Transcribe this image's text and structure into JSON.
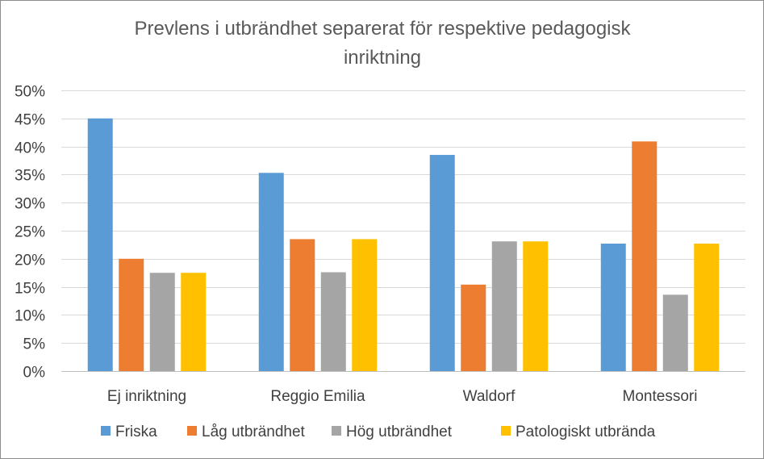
{
  "chart_data": {
    "type": "bar",
    "title_line1": "Prevlens i utbrändhet separerat för respektive pedagogisk",
    "title_line2": "inriktning",
    "categories": [
      "Ej inriktning",
      "Reggio Emilia",
      "Waldorf",
      "Montessori"
    ],
    "series": [
      {
        "name": "Friska",
        "color": "#5b9bd5",
        "values": [
          45,
          35.3,
          38.5,
          22.7
        ]
      },
      {
        "name": "Låg utbrändhet",
        "color": "#ed7d31",
        "values": [
          20,
          23.5,
          15.4,
          40.9
        ]
      },
      {
        "name": "Hög utbrändhet",
        "color": "#a5a5a5",
        "values": [
          17.5,
          17.6,
          23.1,
          13.6
        ]
      },
      {
        "name": "Patologiskt utbrända",
        "color": "#ffc000",
        "values": [
          17.5,
          23.5,
          23.1,
          22.7
        ]
      }
    ],
    "ylim": [
      0,
      50
    ],
    "ytick_step": 5,
    "y_unit": "%",
    "grid": true,
    "legend_position": "bottom"
  }
}
